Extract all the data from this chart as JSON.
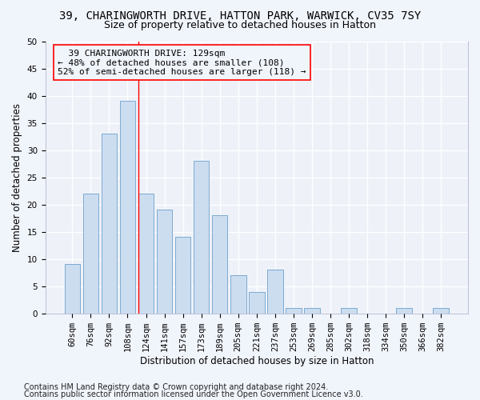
{
  "title1": "39, CHARINGWORTH DRIVE, HATTON PARK, WARWICK, CV35 7SY",
  "title2": "Size of property relative to detached houses in Hatton",
  "xlabel": "Distribution of detached houses by size in Hatton",
  "ylabel": "Number of detached properties",
  "footer1": "Contains HM Land Registry data © Crown copyright and database right 2024.",
  "footer2": "Contains public sector information licensed under the Open Government Licence v3.0.",
  "categories": [
    "60sqm",
    "76sqm",
    "92sqm",
    "108sqm",
    "124sqm",
    "141sqm",
    "157sqm",
    "173sqm",
    "189sqm",
    "205sqm",
    "221sqm",
    "237sqm",
    "253sqm",
    "269sqm",
    "285sqm",
    "302sqm",
    "318sqm",
    "334sqm",
    "350sqm",
    "366sqm",
    "382sqm"
  ],
  "values": [
    9,
    22,
    33,
    39,
    22,
    19,
    14,
    28,
    18,
    7,
    4,
    8,
    1,
    1,
    0,
    1,
    0,
    0,
    1,
    0,
    1
  ],
  "bar_color": "#ccddf0",
  "bar_edge_color": "#7aaad0",
  "annotation_line1": "  39 CHARINGWORTH DRIVE: 129sqm",
  "annotation_line2": "← 48% of detached houses are smaller (108)",
  "annotation_line3": "52% of semi-detached houses are larger (118) →",
  "vline_x_index": 4,
  "ylim": [
    0,
    50
  ],
  "yticks": [
    0,
    5,
    10,
    15,
    20,
    25,
    30,
    35,
    40,
    45,
    50
  ],
  "bg_color": "#f0f4fb",
  "plot_bg_color": "#eef2f8",
  "grid_color": "#ffffff",
  "title1_fontsize": 10,
  "title2_fontsize": 9,
  "annotation_fontsize": 8,
  "axis_label_fontsize": 8.5,
  "tick_fontsize": 7.5,
  "footer_fontsize": 7
}
